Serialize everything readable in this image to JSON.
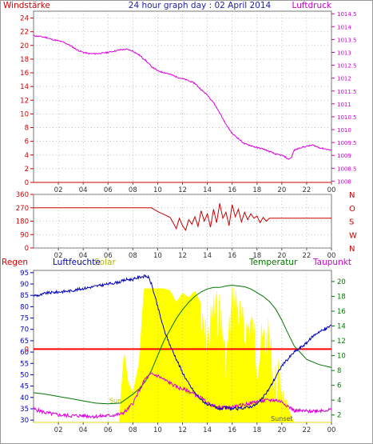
{
  "header": {
    "left_label": "Windstärke",
    "title": "24 hour graph day : 02 April 2014",
    "right_label": "Luftdruck"
  },
  "colors": {
    "wind": "#cc0000",
    "pressure": "#dd00dd",
    "humidity": "#0000bb",
    "temperature": "#007700",
    "dewpoint": "#dd00dd",
    "solar": "#ffff00",
    "rain": "#ff0000",
    "grid": "#aaaaaa"
  },
  "chart_data": [
    {
      "type": "line",
      "name": "wind_pressure",
      "x_ticks": [
        "02",
        "04",
        "06",
        "08",
        "10",
        "12",
        "14",
        "16",
        "18",
        "20",
        "22",
        "00"
      ],
      "ylim_left": [
        0,
        25
      ],
      "y_ticks_left": [
        "0",
        "2",
        "4",
        "6",
        "8",
        "10",
        "12",
        "14",
        "16",
        "18",
        "20",
        "22",
        "24"
      ],
      "ylim_right": [
        1007.95,
        1014.6
      ],
      "y_ticks_right": [
        "1008",
        "1008.5",
        "1009",
        "1009.5",
        "1010",
        "1010.5",
        "1011",
        "1011.5",
        "1012",
        "1012.5",
        "1013",
        "1013.5",
        "1014",
        "1014.5"
      ],
      "series": [
        {
          "name": "Luftdruck",
          "axis": "right",
          "x": [
            0,
            0.5,
            1,
            1.5,
            2,
            2.5,
            3,
            3.5,
            4,
            4.5,
            5,
            5.5,
            6,
            6.5,
            7,
            7.5,
            8,
            8.5,
            9,
            9.5,
            10,
            10.5,
            11,
            11.5,
            12,
            12.5,
            13,
            13.5,
            14,
            14.5,
            15,
            15.5,
            16,
            16.5,
            17,
            17.5,
            18,
            18.5,
            19,
            19.5,
            20,
            20.25,
            20.5,
            20.75,
            21,
            21.5,
            22,
            22.5,
            23,
            23.5,
            24
          ],
          "values": [
            1013.65,
            1013.62,
            1013.58,
            1013.5,
            1013.45,
            1013.38,
            1013.25,
            1013.1,
            1013.0,
            1012.95,
            1012.95,
            1012.97,
            1013.0,
            1013.05,
            1013.1,
            1013.12,
            1013.05,
            1012.9,
            1012.7,
            1012.45,
            1012.28,
            1012.22,
            1012.15,
            1012.05,
            1011.98,
            1011.9,
            1011.8,
            1011.55,
            1011.35,
            1011.05,
            1010.65,
            1010.2,
            1009.85,
            1009.65,
            1009.45,
            1009.38,
            1009.3,
            1009.25,
            1009.15,
            1009.05,
            1009.0,
            1008.95,
            1008.85,
            1008.9,
            1009.2,
            1009.3,
            1009.35,
            1009.4,
            1009.3,
            1009.25,
            1009.2
          ]
        },
        {
          "name": "Windstärke",
          "axis": "left",
          "x": [
            0,
            24
          ],
          "values": [
            0,
            0
          ]
        }
      ]
    },
    {
      "type": "line",
      "name": "wind_direction",
      "x_ticks": [
        "02",
        "04",
        "06",
        "08",
        "10",
        "12",
        "14",
        "16",
        "18",
        "20",
        "22",
        "00"
      ],
      "ylim": [
        0,
        360
      ],
      "y_ticks": [
        "0",
        "90",
        "180",
        "270",
        "360"
      ],
      "compass": [
        "N",
        "W",
        "S",
        "O",
        "N"
      ],
      "series": [
        {
          "name": "direction",
          "x": [
            0,
            1,
            2,
            3,
            4,
            5,
            6,
            7,
            8,
            9,
            9.5,
            10,
            10.5,
            11,
            11.25,
            11.5,
            11.75,
            12,
            12.25,
            12.5,
            12.75,
            13,
            13.25,
            13.5,
            13.75,
            14,
            14.25,
            14.5,
            14.75,
            15,
            15.25,
            15.5,
            15.75,
            16,
            16.25,
            16.5,
            16.75,
            17,
            17.25,
            17.5,
            17.75,
            18,
            18.25,
            18.5,
            18.75,
            19,
            19.25,
            19.5,
            20,
            21,
            22,
            23,
            24
          ],
          "values": [
            270,
            270,
            270,
            270,
            270,
            270,
            270,
            270,
            270,
            270,
            270,
            245,
            225,
            205,
            170,
            130,
            200,
            150,
            120,
            190,
            160,
            210,
            145,
            250,
            180,
            230,
            140,
            260,
            170,
            300,
            200,
            240,
            150,
            290,
            210,
            260,
            175,
            240,
            190,
            230,
            200,
            215,
            170,
            205,
            180,
            200,
            200,
            200,
            200,
            200,
            200,
            200,
            200
          ]
        }
      ]
    },
    {
      "type": "line",
      "name": "climate",
      "labels": {
        "rain": "Regen",
        "humidity": "Luftfeuchte",
        "solar": "Solar",
        "temperature": "Temperatur",
        "dewpoint": "Taupunkt",
        "sunrise": "Sun",
        "sunset": "Sunset",
        "rain_zero": "0"
      },
      "x_ticks": [
        "02",
        "04",
        "06",
        "08",
        "10",
        "12",
        "14",
        "16",
        "18",
        "20",
        "22",
        "00"
      ],
      "ylim_left": [
        29,
        96
      ],
      "y_ticks_left": [
        "30",
        "35",
        "40",
        "45",
        "50",
        "55",
        "60",
        "65",
        "70",
        "75",
        "80",
        "85",
        "90",
        "95"
      ],
      "ylim_right": [
        1,
        21.5
      ],
      "y_ticks_right": [
        "2",
        "4",
        "6",
        "8",
        "10",
        "12",
        "14",
        "16",
        "18",
        "20"
      ],
      "series": [
        {
          "name": "Luftfeuchte",
          "axis": "left",
          "x": [
            0,
            0.5,
            1,
            2,
            3,
            4,
            5,
            6,
            7,
            7.5,
            8,
            8.5,
            9,
            9.25,
            9.5,
            10,
            10.5,
            11,
            11.5,
            12,
            12.5,
            13,
            13.5,
            14,
            14.5,
            15,
            15.5,
            16,
            16.5,
            17,
            17.5,
            18,
            18.5,
            19,
            19.5,
            20,
            20.5,
            21,
            21.5,
            22,
            22.5,
            23,
            23.5,
            24
          ],
          "values": [
            85,
            85,
            86,
            86.5,
            87,
            88,
            89,
            90,
            91,
            92,
            92,
            93,
            93.5,
            93,
            90,
            80,
            70,
            63,
            57,
            51,
            46,
            42,
            39,
            37,
            36,
            35,
            35.5,
            35,
            35,
            35.5,
            36,
            37,
            40,
            44,
            49,
            54,
            57,
            60,
            62,
            64,
            67,
            69,
            70,
            72
          ]
        },
        {
          "name": "Temperatur",
          "axis": "right",
          "x": [
            0,
            1,
            2,
            3,
            4,
            5,
            6,
            7,
            7.5,
            8,
            8.5,
            9,
            9.5,
            10,
            10.5,
            11,
            11.5,
            12,
            12.5,
            13,
            13.5,
            14,
            14.5,
            15,
            15.5,
            16,
            16.5,
            17,
            17.5,
            18,
            18.5,
            19,
            19.5,
            20,
            20.5,
            21,
            22,
            23,
            24
          ],
          "values": [
            5.0,
            4.8,
            4.5,
            4.2,
            3.9,
            3.6,
            3.5,
            3.6,
            4.2,
            4.8,
            5.5,
            6.5,
            8,
            10,
            12,
            13.5,
            15,
            16.2,
            17.2,
            18,
            18.6,
            19,
            19.2,
            19.2,
            19.4,
            19.5,
            19.4,
            19.3,
            19,
            18.5,
            18,
            17.3,
            16.3,
            14.8,
            13,
            11.3,
            9.5,
            8.8,
            8.4
          ]
        },
        {
          "name": "Taupunkt",
          "axis": "right",
          "x": [
            0,
            1,
            2,
            3,
            4,
            5,
            6,
            7,
            7.5,
            8,
            8.5,
            9,
            9.5,
            10,
            10.5,
            11,
            11.5,
            12,
            12.5,
            13,
            13.5,
            14,
            14.5,
            15,
            15.5,
            16,
            16.5,
            17,
            17.5,
            18,
            18.5,
            19,
            19.5,
            20,
            20.5,
            21,
            22,
            23,
            24
          ],
          "values": [
            2.8,
            2.3,
            2.0,
            1.9,
            1.9,
            1.8,
            1.9,
            2.1,
            2.6,
            3.6,
            5.2,
            6.9,
            7.5,
            7.3,
            6.8,
            6.3,
            5.8,
            5.5,
            5.2,
            4.8,
            4.3,
            3.6,
            3.2,
            3.0,
            3.0,
            3.1,
            3.2,
            3.4,
            3.6,
            3.8,
            3.9,
            4.0,
            4.0,
            3.8,
            3.2,
            2.6,
            2.5,
            2.6,
            2.7
          ]
        },
        {
          "name": "Solar",
          "axis": "left",
          "x": [
            0,
            6.9,
            7.0,
            7.3,
            7.6,
            8.0,
            8.5,
            8.9,
            9.1,
            9.5,
            10,
            10.5,
            11,
            11.5,
            12,
            12.5,
            13,
            13.5,
            14,
            14.5,
            15,
            15.5,
            16,
            16.2,
            16.5,
            17,
            17.5,
            18,
            18.5,
            19,
            19.3,
            19.6,
            19.9,
            20.2,
            20.6,
            21,
            24
          ],
          "values": [
            29,
            29,
            38,
            60,
            47,
            42,
            55,
            88,
            88,
            88,
            88,
            88,
            87,
            82,
            86,
            84,
            87,
            81,
            75,
            88,
            88,
            65,
            90,
            95,
            88,
            78,
            84,
            68,
            75,
            75,
            60,
            55,
            60,
            42,
            34,
            29,
            29
          ]
        },
        {
          "name": "Regen",
          "axis": "left",
          "x": [
            0,
            24
          ],
          "values": [
            61.3,
            61.3
          ]
        }
      ]
    }
  ]
}
